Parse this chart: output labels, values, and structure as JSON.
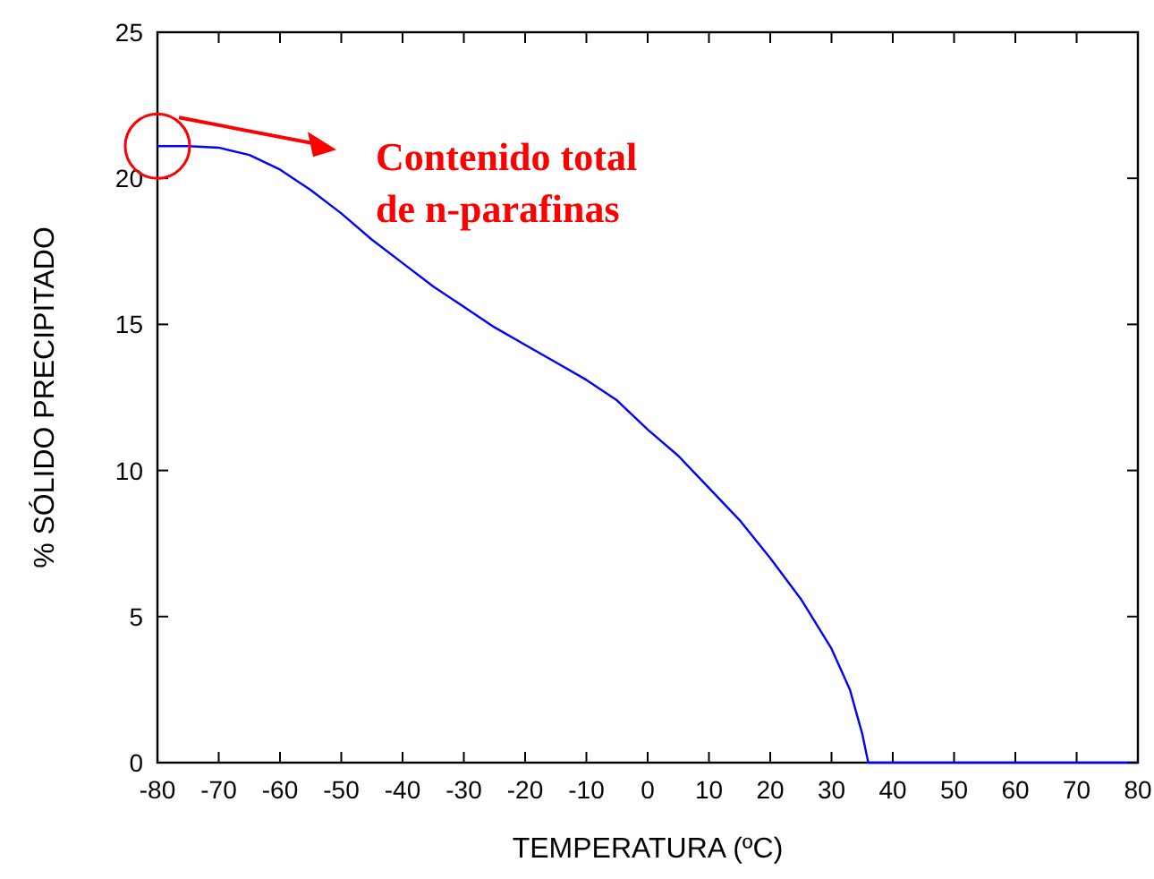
{
  "chart_data": {
    "type": "line",
    "xlabel": "TEMPERATURA (ºC)",
    "ylabel": "% SÓLIDO PRECIPITADO",
    "x": [
      -80,
      -75,
      -70,
      -65,
      -60,
      -55,
      -50,
      -45,
      -40,
      -35,
      -30,
      -25,
      -20,
      -15,
      -10,
      -5,
      0,
      5,
      10,
      15,
      20,
      25,
      30,
      33,
      35,
      36,
      40,
      50,
      60,
      70,
      80
    ],
    "series": [
      {
        "color": "#0000ff",
        "values": [
          21.1,
          21.1,
          21.05,
          20.8,
          20.3,
          19.6,
          18.8,
          17.9,
          17.1,
          16.3,
          15.6,
          14.9,
          14.3,
          13.7,
          13.1,
          12.4,
          11.4,
          10.5,
          9.4,
          8.3,
          7.0,
          5.6,
          3.9,
          2.5,
          1.0,
          0,
          0,
          0,
          0,
          0,
          0
        ]
      }
    ],
    "xlim": [
      -80,
      80
    ],
    "xticks": [
      -80,
      -70,
      -60,
      -50,
      -40,
      -30,
      -20,
      -10,
      0,
      10,
      20,
      30,
      40,
      50,
      60,
      70,
      80
    ],
    "ylim": [
      0,
      25
    ],
    "yticks": [
      0,
      5,
      10,
      15,
      20,
      25
    ],
    "grid": false,
    "marker": "none",
    "line_style": "solid",
    "annotations": [
      "Contenido total\nde n-parafinas"
    ]
  }
}
